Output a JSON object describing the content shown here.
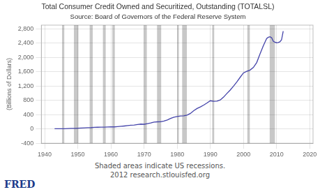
{
  "chart_data": {
    "type": "line",
    "title": "Total Consumer Credit Owned and Securitized, Outstanding (TOTALSL)",
    "subtitle": "Source: Board of Governors of the Federal Reserve System",
    "ylabel": "(Billions of Dollars)",
    "annotations": [
      "Shaded areas indicate US recessions.",
      "2012 research.stlouisfed.org",
      "FRED"
    ],
    "x": [
      1943.0,
      1944.0,
      1945.0,
      1946.0,
      1947.0,
      1948.0,
      1949.0,
      1950.0,
      1951.0,
      1952.0,
      1953.0,
      1954.0,
      1955.0,
      1956.0,
      1957.0,
      1958.0,
      1959.0,
      1960.0,
      1961.0,
      1962.0,
      1963.0,
      1964.0,
      1965.0,
      1966.0,
      1967.0,
      1968.0,
      1969.0,
      1970.0,
      1971.0,
      1972.0,
      1973.0,
      1974.0,
      1975.0,
      1976.0,
      1977.0,
      1978.0,
      1979.0,
      1980.0,
      1981.0,
      1982.0,
      1983.0,
      1984.0,
      1985.0,
      1986.0,
      1987.0,
      1988.0,
      1989.0,
      1990.0,
      1991.0,
      1992.0,
      1993.0,
      1994.0,
      1995.0,
      1996.0,
      1997.0,
      1998.0,
      1999.0,
      2000.0,
      2001.0,
      2002.0,
      2003.0,
      2004.0,
      2005.0,
      2006.0,
      2007.0,
      2007.5,
      2008.0,
      2008.5,
      2009.0,
      2009.5,
      2010.0,
      2010.5,
      2011.0,
      2011.5,
      2012.0
    ],
    "values": [
      5.5,
      5.7,
      5.7,
      8.0,
      11.6,
      14.5,
      17.2,
      21.5,
      26.0,
      31.0,
      36.5,
      37.5,
      44.0,
      48.0,
      51.0,
      49.5,
      55.0,
      60.0,
      57.0,
      66.0,
      73.0,
      82.0,
      93.0,
      103.0,
      109.0,
      124.0,
      135.0,
      131.0,
      148.0,
      167.0,
      191.0,
      199.0,
      200.0,
      220.0,
      252.0,
      292.0,
      327.0,
      349.0,
      361.0,
      366.0,
      388.0,
      435.0,
      510.0,
      572.0,
      617.0,
      667.0,
      724.0,
      789.0,
      773.0,
      775.0,
      810.0,
      889.0,
      991.0,
      1087.0,
      1196.0,
      1313.0,
      1442.0,
      1565.0,
      1610.0,
      1645.0,
      1718.0,
      1855.0,
      2094.0,
      2325.0,
      2524.0,
      2560.0,
      2576.0,
      2550.0,
      2452.0,
      2423.0,
      2408.0,
      2415.0,
      2435.0,
      2490.0,
      2730.0
    ],
    "color": "#4444aa",
    "shaded": {
      "color": "#c8c8c8",
      "ranges": [
        [
          1945.25,
          1945.92
        ],
        [
          1948.83,
          1950.17
        ],
        [
          1953.58,
          1954.5
        ],
        [
          1957.58,
          1958.42
        ],
        [
          1960.42,
          1961.17
        ],
        [
          1969.92,
          1970.83
        ],
        [
          1973.92,
          1975.17
        ],
        [
          1980.0,
          1980.5
        ],
        [
          1981.5,
          1982.92
        ],
        [
          1990.58,
          1991.17
        ],
        [
          2001.17,
          2001.92
        ],
        [
          2007.92,
          2009.5
        ]
      ]
    },
    "xlim": [
      1939,
      2021
    ],
    "ylim": [
      -400,
      2900
    ],
    "xticks": [
      1940,
      1950,
      1960,
      1970,
      1980,
      1990,
      2000,
      2010,
      2020
    ],
    "yticks": [
      -400,
      0,
      400,
      800,
      {
        "value": 1200,
        "label": "1,200"
      },
      {
        "value": 1600,
        "label": "1,600"
      },
      {
        "value": 2000,
        "label": "2,000"
      },
      {
        "value": 2400,
        "label": "2,400"
      },
      {
        "value": 2800,
        "label": "2,800"
      }
    ],
    "grid": true
  }
}
